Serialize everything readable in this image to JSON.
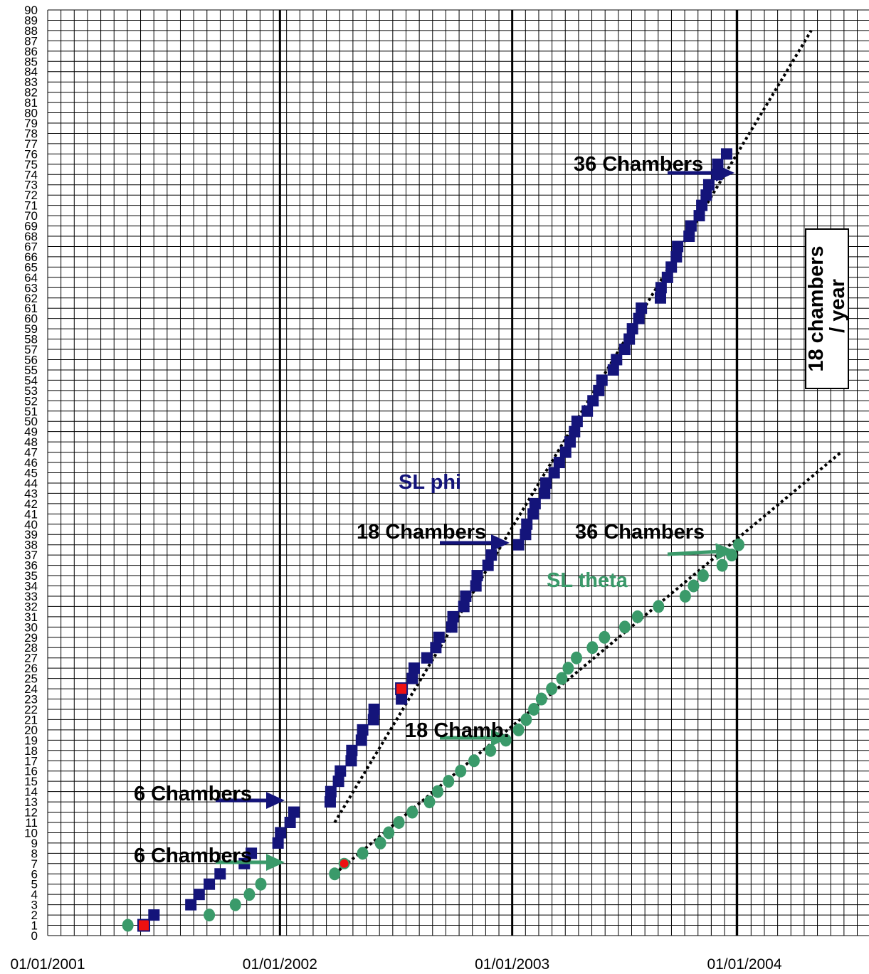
{
  "colors": {
    "sl_phi": "#14147a",
    "sl_theta": "#3a9a6a",
    "highlight": "#ee1111",
    "grid": "#000000",
    "trend": "#000000"
  },
  "chart_data": {
    "type": "scatter",
    "title": "",
    "xlabel": "",
    "ylabel": "",
    "x_axis": {
      "range": [
        "2001-01-01",
        "2004-06-01"
      ],
      "tick_labels": [
        "01/01/2001",
        "01/01/2002",
        "01/01/2003",
        "01/01/2004"
      ],
      "tick_dates": [
        "2001-01-01",
        "2002-01-01",
        "2003-01-01",
        "2004-01-01"
      ]
    },
    "y_axis": {
      "min": 0,
      "max": 90,
      "step": 1
    },
    "grid": true,
    "vertical_markers": [
      "2002-01-01",
      "2003-01-01",
      "2003-12-20"
    ],
    "series": [
      {
        "name": "SL phi",
        "marker": "square",
        "points": [
          [
            "2001-06-01",
            1
          ],
          [
            "2001-06-17",
            2
          ],
          [
            "2001-08-14",
            3
          ],
          [
            "2001-08-27",
            4
          ],
          [
            "2001-09-12",
            5
          ],
          [
            "2001-09-29",
            6
          ],
          [
            "2001-11-06",
            7
          ],
          [
            "2001-11-17",
            8
          ],
          [
            "2001-12-29",
            9
          ],
          [
            "2002-01-02",
            10
          ],
          [
            "2002-01-17",
            11
          ],
          [
            "2002-01-23",
            12
          ],
          [
            "2002-03-21",
            13
          ],
          [
            "2002-03-22",
            14
          ],
          [
            "2002-04-03",
            15
          ],
          [
            "2002-04-06",
            16
          ],
          [
            "2002-04-23",
            17
          ],
          [
            "2002-04-24",
            18
          ],
          [
            "2002-05-09",
            19
          ],
          [
            "2002-05-11",
            20
          ],
          [
            "2002-05-28",
            21
          ],
          [
            "2002-05-29",
            22
          ],
          [
            "2002-07-11",
            23
          ],
          [
            "2002-07-11",
            24
          ],
          [
            "2002-07-28",
            25
          ],
          [
            "2002-07-31",
            26
          ],
          [
            "2002-08-20",
            27
          ],
          [
            "2002-09-03",
            28
          ],
          [
            "2002-09-08",
            29
          ],
          [
            "2002-09-28",
            30
          ],
          [
            "2002-09-30",
            31
          ],
          [
            "2002-10-17",
            32
          ],
          [
            "2002-10-20",
            33
          ],
          [
            "2002-11-05",
            34
          ],
          [
            "2002-11-07",
            35
          ],
          [
            "2002-11-24",
            36
          ],
          [
            "2002-11-29",
            37
          ],
          [
            "2003-01-11",
            38
          ],
          [
            "2003-01-22",
            39
          ],
          [
            "2003-01-24",
            40
          ],
          [
            "2003-02-03",
            41
          ],
          [
            "2003-02-06",
            42
          ],
          [
            "2003-02-21",
            43
          ],
          [
            "2003-02-23",
            44
          ],
          [
            "2003-03-08",
            45
          ],
          [
            "2003-03-16",
            46
          ],
          [
            "2003-03-26",
            47
          ],
          [
            "2003-04-02",
            48
          ],
          [
            "2003-04-09",
            49
          ],
          [
            "2003-04-13",
            50
          ],
          [
            "2003-04-29",
            51
          ],
          [
            "2003-05-08",
            52
          ],
          [
            "2003-05-17",
            53
          ],
          [
            "2003-05-22",
            54
          ],
          [
            "2003-06-09",
            55
          ],
          [
            "2003-06-14",
            56
          ],
          [
            "2003-06-27",
            57
          ],
          [
            "2003-07-04",
            58
          ],
          [
            "2003-07-09",
            59
          ],
          [
            "2003-07-19",
            60
          ],
          [
            "2003-07-23",
            61
          ],
          [
            "2003-08-22",
            62
          ],
          [
            "2003-08-23",
            63
          ],
          [
            "2003-09-02",
            64
          ],
          [
            "2003-09-08",
            65
          ],
          [
            "2003-09-16",
            66
          ],
          [
            "2003-09-18",
            67
          ],
          [
            "2003-10-06",
            68
          ],
          [
            "2003-10-09",
            69
          ],
          [
            "2003-10-22",
            70
          ],
          [
            "2003-10-26",
            71
          ],
          [
            "2003-11-02",
            72
          ],
          [
            "2003-11-06",
            73
          ],
          [
            "2003-11-19",
            74
          ],
          [
            "2003-11-20",
            75
          ],
          [
            "2003-12-04",
            76
          ]
        ]
      },
      {
        "name": "SL theta",
        "marker": "circle",
        "points": [
          [
            "2001-05-07",
            1
          ],
          [
            "2001-09-12",
            2
          ],
          [
            "2001-10-23",
            3
          ],
          [
            "2001-11-14",
            4
          ],
          [
            "2001-12-02",
            5
          ],
          [
            "2002-03-28",
            6
          ],
          [
            "2002-04-12",
            7
          ],
          [
            "2002-05-11",
            8
          ],
          [
            "2002-06-08",
            9
          ],
          [
            "2002-06-21",
            10
          ],
          [
            "2002-07-07",
            11
          ],
          [
            "2002-07-28",
            12
          ],
          [
            "2002-08-24",
            13
          ],
          [
            "2002-09-06",
            14
          ],
          [
            "2002-09-23",
            15
          ],
          [
            "2002-10-12",
            16
          ],
          [
            "2002-11-02",
            17
          ],
          [
            "2002-11-28",
            18
          ],
          [
            "2002-12-22",
            19
          ],
          [
            "2003-01-11",
            20
          ],
          [
            "2003-01-23",
            21
          ],
          [
            "2003-02-04",
            22
          ],
          [
            "2003-02-16",
            23
          ],
          [
            "2003-03-04",
            24
          ],
          [
            "2003-03-20",
            25
          ],
          [
            "2003-03-30",
            26
          ],
          [
            "2003-04-12",
            27
          ],
          [
            "2003-05-07",
            28
          ],
          [
            "2003-05-26",
            29
          ],
          [
            "2003-06-27",
            30
          ],
          [
            "2003-07-17",
            31
          ],
          [
            "2003-08-19",
            32
          ],
          [
            "2003-09-30",
            33
          ],
          [
            "2003-10-13",
            34
          ],
          [
            "2003-10-28",
            35
          ],
          [
            "2003-11-27",
            36
          ],
          [
            "2003-12-12",
            37
          ],
          [
            "2003-12-23",
            38
          ]
        ]
      }
    ],
    "highlighted_points": [
      {
        "series": "SL phi",
        "x": "2001-06-01",
        "y": 1
      },
      {
        "series": "SL phi",
        "x": "2002-07-11",
        "y": 24
      },
      {
        "series": "SL theta",
        "x": "2002-04-12",
        "y": 7
      }
    ],
    "trend_lines": [
      {
        "series": "SL phi",
        "from": [
          "2002-03-28",
          11
        ],
        "to": [
          "2004-04-15",
          88
        ]
      },
      {
        "series": "SL theta",
        "from": [
          "2002-03-28",
          6
        ],
        "to": [
          "2004-06-01",
          47
        ]
      }
    ],
    "annotations": [
      {
        "id": "phi-6",
        "text": "6 Chambers",
        "series": "SL phi"
      },
      {
        "id": "theta-6",
        "text": "6 Chambers",
        "series": "SL theta"
      },
      {
        "id": "phi-18",
        "text": "18 Chambers",
        "series": "SL phi"
      },
      {
        "id": "theta-18",
        "text": "18 Chamb.",
        "series": "SL theta"
      },
      {
        "id": "phi-36",
        "text": "36 Chambers",
        "series": "SL phi"
      },
      {
        "id": "theta-36",
        "text": "36 Chambers",
        "series": "SL theta"
      },
      {
        "id": "phi-label",
        "text": "SL phi",
        "series": "SL phi"
      },
      {
        "id": "theta-label",
        "text": "SL theta",
        "series": "SL theta"
      }
    ],
    "rate_label": "18 chambers\n / year"
  }
}
